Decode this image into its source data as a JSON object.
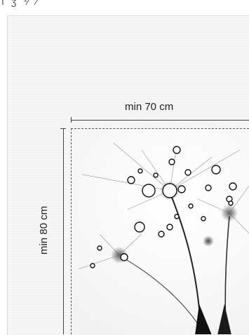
{
  "top_text": "ı ʒ ⅟ ⁄",
  "dimensions": {
    "width_label": "min 70 cm",
    "height_label": "min 80 cm"
  },
  "image": {
    "subject_icon": "dandelion-photo",
    "palette": {
      "background": "#f7f7f7",
      "dark": "#111111",
      "line": "#444444"
    }
  }
}
